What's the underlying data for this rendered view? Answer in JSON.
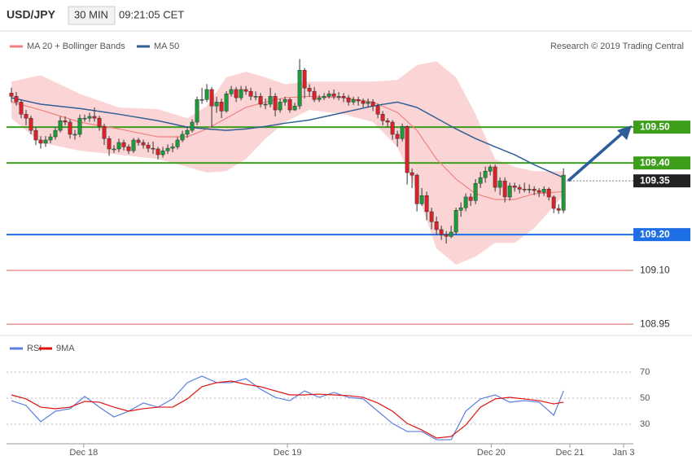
{
  "chart_data": [
    {
      "type": "candlestick",
      "title": "USD/JPY",
      "subtitle": "30 MIN",
      "timestamp": "09:21:05 CET",
      "credit": "Research © 2019 Trading Central",
      "up_color": "#1f9a3a",
      "down_color": "#d8232a",
      "xlim": [
        -1,
        127.3
      ],
      "ylim": [
        108.923,
        109.764
      ],
      "ohlc": [
        [
          109.595,
          109.61,
          109.57,
          109.586
        ],
        [
          109.586,
          109.598,
          109.56,
          109.57
        ],
        [
          109.57,
          109.578,
          109.525,
          109.536
        ],
        [
          109.536,
          109.548,
          109.505,
          109.525
        ],
        [
          109.525,
          109.532,
          109.48,
          109.491
        ],
        [
          109.491,
          109.5,
          109.45,
          109.464
        ],
        [
          109.464,
          109.475,
          109.44,
          109.455
        ],
        [
          109.455,
          109.475,
          109.445,
          109.464
        ],
        [
          109.464,
          109.482,
          109.455,
          109.473
        ],
        [
          109.473,
          109.5,
          109.465,
          109.491
        ],
        [
          109.491,
          109.53,
          109.485,
          109.518
        ],
        [
          109.518,
          109.53,
          109.505,
          109.514
        ],
        [
          109.514,
          109.522,
          109.468,
          109.48
        ],
        [
          109.48,
          109.492,
          109.465,
          109.48
        ],
        [
          109.48,
          109.535,
          109.472,
          109.525
        ],
        [
          109.525,
          109.535,
          109.515,
          109.525
        ],
        [
          109.525,
          109.54,
          109.515,
          109.53
        ],
        [
          109.53,
          109.555,
          109.515,
          109.525
        ],
        [
          109.525,
          109.532,
          109.49,
          109.502
        ],
        [
          109.502,
          109.51,
          109.45,
          109.468
        ],
        [
          109.468,
          109.475,
          109.42,
          109.439
        ],
        [
          109.439,
          109.45,
          109.428,
          109.439
        ],
        [
          109.439,
          109.468,
          109.43,
          109.457
        ],
        [
          109.457,
          109.465,
          109.435,
          109.445
        ],
        [
          109.445,
          109.452,
          109.425,
          109.434
        ],
        [
          109.434,
          109.47,
          109.428,
          109.464
        ],
        [
          109.464,
          109.47,
          109.448,
          109.457
        ],
        [
          109.457,
          109.465,
          109.44,
          109.45
        ],
        [
          109.45,
          109.458,
          109.43,
          109.441
        ],
        [
          109.441,
          109.46,
          109.425,
          109.439
        ],
        [
          109.439,
          109.445,
          109.41,
          109.423
        ],
        [
          109.423,
          109.445,
          109.415,
          109.434
        ],
        [
          109.434,
          109.452,
          109.425,
          109.441
        ],
        [
          109.441,
          109.455,
          109.43,
          109.445
        ],
        [
          109.445,
          109.472,
          109.438,
          109.464
        ],
        [
          109.464,
          109.49,
          109.458,
          109.48
        ],
        [
          109.48,
          109.5,
          109.47,
          109.491
        ],
        [
          109.491,
          109.522,
          109.485,
          109.514
        ],
        [
          109.514,
          109.585,
          109.505,
          109.577
        ],
        [
          109.577,
          109.61,
          109.565,
          109.577
        ],
        [
          109.577,
          109.62,
          109.57,
          109.605
        ],
        [
          109.605,
          109.612,
          109.5,
          109.559
        ],
        [
          109.559,
          109.585,
          109.54,
          109.57
        ],
        [
          109.57,
          109.58,
          109.525,
          109.545
        ],
        [
          109.545,
          109.6,
          109.54,
          109.593
        ],
        [
          109.593,
          109.615,
          109.585,
          109.605
        ],
        [
          109.605,
          109.612,
          109.57,
          109.582
        ],
        [
          109.582,
          109.615,
          109.575,
          109.605
        ],
        [
          109.605,
          109.615,
          109.59,
          109.6
        ],
        [
          109.6,
          109.61,
          109.575,
          109.586
        ],
        [
          109.586,
          109.6,
          109.575,
          109.586
        ],
        [
          109.586,
          109.595,
          109.555,
          109.564
        ],
        [
          109.564,
          109.58,
          109.55,
          109.564
        ],
        [
          109.564,
          109.61,
          109.555,
          109.586
        ],
        [
          109.586,
          109.595,
          109.53,
          109.548
        ],
        [
          109.548,
          109.58,
          109.54,
          109.57
        ],
        [
          109.57,
          109.585,
          109.56,
          109.577
        ],
        [
          109.577,
          109.582,
          109.54,
          109.548
        ],
        [
          109.548,
          109.568,
          109.545,
          109.559
        ],
        [
          109.559,
          109.69,
          109.55,
          109.659
        ],
        [
          109.659,
          109.665,
          109.58,
          109.609
        ],
        [
          109.609,
          109.62,
          109.585,
          109.6
        ],
        [
          109.6,
          109.612,
          109.57,
          109.577
        ],
        [
          109.577,
          109.59,
          109.57,
          109.582
        ],
        [
          109.582,
          109.595,
          109.575,
          109.586
        ],
        [
          109.586,
          109.602,
          109.58,
          109.593
        ],
        [
          109.593,
          109.605,
          109.578,
          109.586
        ],
        [
          109.586,
          109.598,
          109.575,
          109.586
        ],
        [
          109.586,
          109.595,
          109.57,
          109.582
        ],
        [
          109.582,
          109.59,
          109.56,
          109.57
        ],
        [
          109.57,
          109.585,
          109.562,
          109.577
        ],
        [
          109.577,
          109.585,
          109.56,
          109.573
        ],
        [
          109.573,
          109.58,
          109.555,
          109.566
        ],
        [
          109.566,
          109.58,
          109.555,
          109.57
        ],
        [
          109.57,
          109.578,
          109.545,
          109.559
        ],
        [
          109.559,
          109.565,
          109.525,
          109.536
        ],
        [
          109.536,
          109.545,
          109.505,
          109.518
        ],
        [
          109.518,
          109.525,
          109.5,
          109.514
        ],
        [
          109.514,
          109.52,
          109.465,
          109.48
        ],
        [
          109.48,
          109.49,
          109.445,
          109.468
        ],
        [
          109.468,
          109.51,
          109.46,
          109.502
        ],
        [
          109.502,
          109.505,
          109.34,
          109.373
        ],
        [
          109.373,
          109.385,
          109.33,
          109.366
        ],
        [
          109.366,
          109.37,
          109.265,
          109.286
        ],
        [
          109.286,
          109.33,
          109.28,
          109.309
        ],
        [
          109.309,
          109.32,
          109.24,
          109.264
        ],
        [
          109.264,
          109.275,
          109.215,
          109.236
        ],
        [
          109.236,
          109.25,
          109.2,
          109.214
        ],
        [
          109.214,
          109.225,
          109.185,
          109.2
        ],
        [
          109.2,
          109.21,
          109.175,
          109.195
        ],
        [
          109.195,
          109.225,
          109.19,
          109.207
        ],
        [
          109.207,
          109.275,
          109.2,
          109.268
        ],
        [
          109.268,
          109.29,
          109.25,
          109.275
        ],
        [
          109.275,
          109.315,
          109.265,
          109.305
        ],
        [
          109.305,
          109.315,
          109.28,
          109.295
        ],
        [
          109.295,
          109.355,
          109.285,
          109.343
        ],
        [
          109.343,
          109.375,
          109.33,
          109.359
        ],
        [
          109.359,
          109.39,
          109.345,
          109.377
        ],
        [
          109.377,
          109.395,
          109.365,
          109.389
        ],
        [
          109.389,
          109.395,
          109.32,
          109.332
        ],
        [
          109.332,
          109.36,
          109.31,
          109.35
        ],
        [
          109.35,
          109.36,
          109.29,
          109.305
        ],
        [
          109.305,
          109.345,
          109.295,
          109.336
        ],
        [
          109.336,
          109.345,
          109.32,
          109.332
        ],
        [
          109.332,
          109.34,
          109.315,
          109.327
        ],
        [
          109.327,
          109.345,
          109.318,
          109.325
        ],
        [
          109.325,
          109.34,
          109.315,
          109.327
        ],
        [
          109.327,
          109.335,
          109.31,
          109.323
        ],
        [
          109.323,
          109.33,
          109.305,
          109.318
        ],
        [
          109.318,
          109.335,
          109.308,
          109.327
        ],
        [
          109.327,
          109.332,
          109.295,
          109.305
        ],
        [
          109.305,
          109.31,
          109.26,
          109.273
        ],
        [
          109.273,
          109.285,
          109.258,
          109.268
        ],
        [
          109.268,
          109.385,
          109.26,
          109.366
        ]
      ],
      "series": [
        {
          "name": "MA 20 + Bollinger Bands",
          "color": "#f08080",
          "band_color": "#fbd5d5",
          "x": [
            0,
            6,
            14,
            22,
            30,
            36,
            40,
            44,
            48,
            52,
            56,
            61,
            68,
            74,
            79,
            83,
            87,
            91,
            95,
            99,
            103,
            107,
            113
          ],
          "values": [
            109.57,
            109.548,
            109.514,
            109.495,
            109.473,
            109.473,
            109.495,
            109.525,
            109.555,
            109.57,
            109.582,
            109.586,
            109.582,
            109.57,
            109.541,
            109.491,
            109.411,
            109.355,
            109.314,
            109.298,
            109.298,
            109.314,
            109.32
          ],
          "upper": [
            109.627,
            109.645,
            109.593,
            109.555,
            109.55,
            109.525,
            109.559,
            109.639,
            109.655,
            109.639,
            109.62,
            109.627,
            109.627,
            109.627,
            109.632,
            109.673,
            109.684,
            109.639,
            109.536,
            109.411,
            109.389,
            109.377,
            109.377
          ],
          "lower": [
            109.525,
            109.457,
            109.434,
            109.423,
            109.411,
            109.389,
            109.373,
            109.377,
            109.411,
            109.468,
            109.514,
            109.548,
            109.536,
            109.514,
            109.445,
            109.32,
            109.161,
            109.116,
            109.139,
            109.177,
            109.177,
            109.218,
            109.309
          ]
        },
        {
          "name": "MA 50",
          "color": "#2f5f96",
          "x": [
            0,
            6,
            14,
            22,
            30,
            36,
            40,
            44,
            48,
            52,
            56,
            61,
            68,
            74,
            79,
            83,
            87,
            91,
            95,
            99,
            103,
            107,
            113
          ],
          "values": [
            109.582,
            109.564,
            109.552,
            109.536,
            109.518,
            109.5,
            109.495,
            109.491,
            109.495,
            109.502,
            109.511,
            109.52,
            109.541,
            109.559,
            109.57,
            109.555,
            109.525,
            109.495,
            109.468,
            109.445,
            109.423,
            109.395,
            109.359
          ]
        }
      ],
      "levels": [
        {
          "value": 109.5,
          "label": "109.50",
          "color": "#3d9e1c",
          "boxed": true,
          "style": "solid"
        },
        {
          "value": 109.4,
          "label": "109.40",
          "color": "#3d9e1c",
          "boxed": true,
          "style": "solid"
        },
        {
          "value": 109.35,
          "label": "109.35",
          "color": "#222222",
          "boxed": true,
          "style": "dotted"
        },
        {
          "value": 109.2,
          "label": "109.20",
          "color": "#1e6fe6",
          "boxed": true,
          "style": "solid"
        },
        {
          "value": 109.1,
          "label": "109.10",
          "color": "#e88080",
          "boxed": false,
          "style": "solid"
        },
        {
          "value": 108.95,
          "label": "108.95",
          "color": "#e88080",
          "boxed": false,
          "style": "solid"
        }
      ]
    },
    {
      "type": "line",
      "xlim": [
        -1,
        127.3
      ],
      "ylim": [
        15,
        80
      ],
      "yticks": [
        30,
        50,
        70
      ],
      "xticks": [
        {
          "value": 14.8,
          "label": "Dec 18"
        },
        {
          "value": 56.5,
          "label": "Dec 19"
        },
        {
          "value": 98.2,
          "label": "Dec 20"
        },
        {
          "value": 114.3,
          "label": "Dec 21"
        },
        {
          "value": 125.3,
          "label": "Jan 3"
        }
      ],
      "series": [
        {
          "name": "RSI",
          "color": "#5b7fe0",
          "x": [
            0,
            3,
            6,
            9,
            12,
            15,
            18,
            21,
            24,
            27,
            30,
            33,
            36,
            39,
            42,
            45,
            48,
            51,
            54,
            57,
            60,
            63,
            66,
            69,
            72,
            75,
            78,
            81,
            84,
            87,
            90,
            93,
            96,
            99,
            102,
            105,
            108,
            111,
            113
          ],
          "values": [
            48.1,
            44.4,
            31.9,
            40,
            41.9,
            51.3,
            43.1,
            35.6,
            40,
            46.3,
            43.1,
            49.4,
            61.9,
            66.9,
            61.9,
            61.9,
            65,
            56.9,
            50.6,
            48.1,
            55.6,
            50.6,
            54.4,
            50.6,
            49.4,
            40,
            30.6,
            24.4,
            24.4,
            18.1,
            18.1,
            40,
            49.4,
            52.5,
            46.9,
            48.1,
            46.9,
            36.9,
            55.6
          ]
        },
        {
          "name": "9MA",
          "color": "#e01010",
          "x": [
            0,
            3,
            6,
            9,
            12,
            15,
            18,
            21,
            24,
            27,
            30,
            33,
            36,
            39,
            42,
            45,
            48,
            51,
            54,
            57,
            60,
            63,
            66,
            69,
            72,
            75,
            78,
            81,
            84,
            87,
            90,
            93,
            96,
            99,
            102,
            105,
            108,
            111,
            113
          ],
          "values": [
            52.5,
            49.4,
            43.1,
            41.9,
            43.1,
            47.5,
            46.9,
            43.1,
            40,
            41.9,
            43.1,
            43.1,
            49.4,
            58.8,
            61.9,
            63.1,
            60.6,
            58.8,
            55.6,
            52.5,
            52.5,
            53.1,
            52.5,
            51.9,
            50.6,
            46.3,
            40,
            30.6,
            25.6,
            19.4,
            20.6,
            29.4,
            43.1,
            49.4,
            50.6,
            49.4,
            48.1,
            45.6,
            46.9
          ]
        }
      ]
    }
  ]
}
